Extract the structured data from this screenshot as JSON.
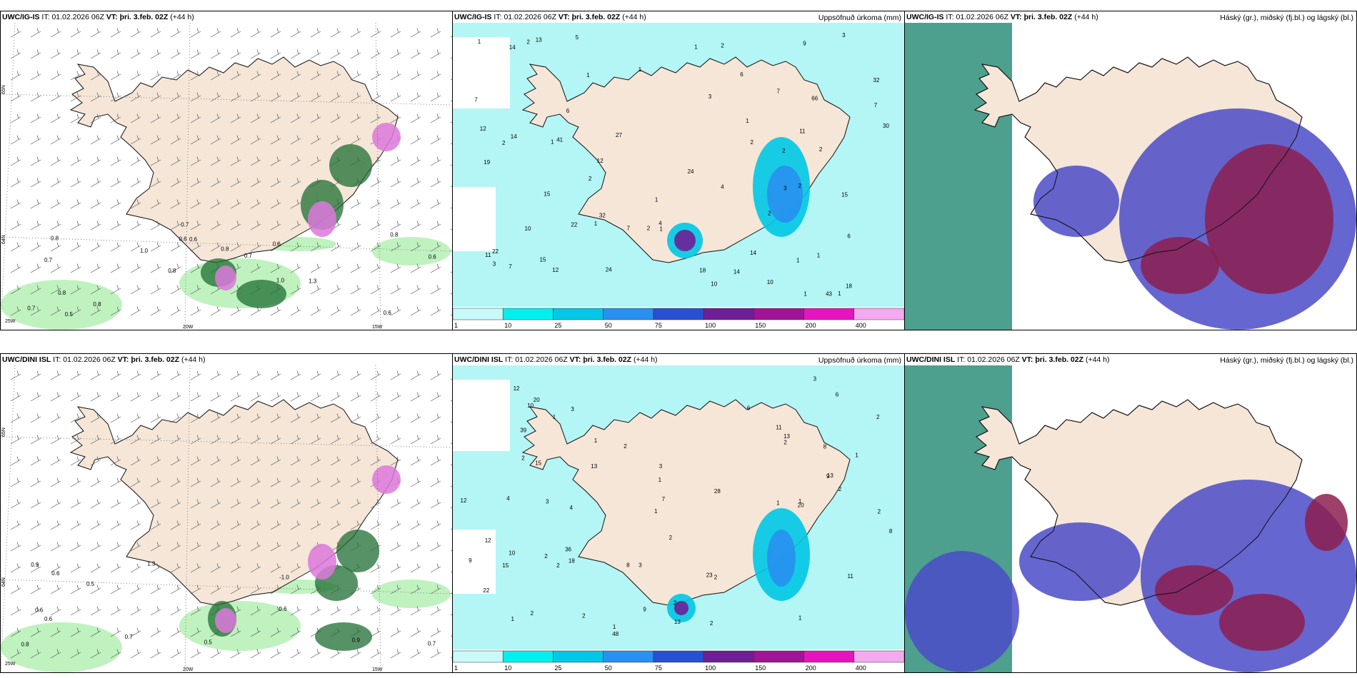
{
  "rows": [
    {
      "model": "UWC/IG-IS",
      "panels": [
        {
          "kind": "wind",
          "model": "UWC/IG-IS",
          "it_label": "IT:",
          "it": "01.02.2026 06Z",
          "vt_label": "VT:",
          "vt": "þri. 3.feb. 02Z",
          "lead": "(+44 h)",
          "right_title": ""
        },
        {
          "kind": "precip",
          "model": "UWC/IG-IS",
          "it_label": "IT:",
          "it": "01.02.2026 06Z",
          "vt_label": "VT:",
          "vt": "þri. 3.feb. 02Z",
          "lead": "(+44 h)",
          "right_title": "Uppsöfnuð úrkoma (mm)"
        },
        {
          "kind": "cloud",
          "model": "UWC/IG-IS",
          "it_label": "IT:",
          "it": "01.02.2026 06Z",
          "vt_label": "VT:",
          "vt": "þri. 3.feb. 02Z",
          "lead": "(+44 h)",
          "right_title": "Háský (gr.), miðský (fj.bl.) og lágský (bl.)"
        }
      ],
      "wind_values": [
        "0.6",
        "0.7",
        "0.8",
        "0.8",
        "0.6",
        "0.5",
        "0.6",
        "0.8",
        "0.8",
        "1.0",
        "0.7",
        "0.8",
        "0.6",
        "0.7",
        "1.3",
        "0.8",
        "0.7",
        "0.6",
        "1.0"
      ],
      "precip_values": [
        "1",
        "1",
        "2",
        "2",
        "1",
        "1",
        "2",
        "2",
        "1",
        "2",
        "2",
        "1",
        "1",
        "1",
        "12",
        "14",
        "24",
        "30",
        "32",
        "27",
        "43",
        "41",
        "14",
        "22",
        "1",
        "2",
        "18",
        "22",
        "66",
        "11",
        "32",
        "7",
        "7",
        "6",
        "7",
        "12",
        "14",
        "13",
        "15",
        "24",
        "19",
        "18",
        "15",
        "10",
        "1",
        "3",
        "4",
        "6",
        "5",
        "6",
        "10",
        "11",
        "4",
        "9",
        "7",
        "1",
        "12",
        "14",
        "10",
        "15",
        "2",
        "1",
        "7",
        "3",
        "1",
        "2",
        "3",
        "3",
        "2"
      ],
      "lat_labels": [
        "65N",
        "64N"
      ],
      "lon_labels": [
        "25W",
        "20W",
        "15W"
      ]
    },
    {
      "model": "UWC/DINI ISL",
      "panels": [
        {
          "kind": "wind",
          "model": "UWC/DINI ISL",
          "it_label": "IT:",
          "it": "01.02.2026 06Z",
          "vt_label": "VT:",
          "vt": "þri. 3.feb. 02Z",
          "lead": "(+44 h)",
          "right_title": ""
        },
        {
          "kind": "precip",
          "model": "UWC/DINI ISL",
          "it_label": "IT:",
          "it": "01.02.2026 06Z",
          "vt_label": "VT:",
          "vt": "þri. 3.feb. 02Z",
          "lead": "(+44 h)",
          "right_title": "Uppsöfnuð úrkoma (mm)"
        },
        {
          "kind": "cloud",
          "model": "UWC/DINI ISL",
          "it_label": "IT:",
          "it": "01.02.2026 06Z",
          "vt_label": "VT:",
          "vt": "þri. 3.feb. 02Z",
          "lead": "(+44 h)",
          "right_title": "Háský (gr.), miðský (fj.bl.) og lágský (bl.)"
        }
      ],
      "wind_values": [
        "0.6",
        "0.6",
        "0.6",
        "0.8",
        "-1.0",
        "0.9",
        "0.7",
        "0.7",
        "1.3",
        "0.5",
        "0.5",
        "0.9",
        "0.6"
      ],
      "precip_values": [
        "1",
        "1",
        "1",
        "2",
        "2",
        "2",
        "1",
        "2",
        "3",
        "2",
        "2",
        "1",
        "1",
        "1",
        "1",
        "2",
        "2",
        "3",
        "4",
        "28",
        "23",
        "39",
        "36",
        "20",
        "8",
        "11",
        "9",
        "15",
        "6",
        "8",
        "13",
        "13",
        "48",
        "11",
        "10",
        "13",
        "10",
        "12",
        "9",
        "7",
        "6",
        "9",
        "8",
        "4",
        "15",
        "22",
        "20",
        "12",
        "12",
        "13",
        "18",
        "2",
        "1",
        "3",
        "2",
        "3",
        "2",
        "1",
        "2",
        "2",
        "3",
        "2"
      ],
      "lat_labels": [
        "65N",
        "64N"
      ],
      "lon_labels": [
        "25W",
        "20W",
        "15W"
      ]
    }
  ],
  "colorbar": {
    "ticks": [
      "1",
      "10",
      "25",
      "50",
      "75",
      "100",
      "150",
      "200",
      "400"
    ],
    "colors": [
      "#c8fafa",
      "#00f0f0",
      "#00c8e6",
      "#2890f0",
      "#2850d2",
      "#6e1e96",
      "#a01496",
      "#e614be",
      "#f5aaf0"
    ]
  },
  "colors": {
    "land": "#f5e6d8",
    "sea": "#ffffff",
    "precip_light": "#b4f5f5",
    "precip_mid": "#00d2e6",
    "cloud_high": "#2e8e7a",
    "cloud_mid": "#4b4bc8",
    "cloud_low": "#8c1e50",
    "wind_green": "#b4f0b4",
    "wind_dark": "#1e6e32",
    "wind_pink": "#dc78dc"
  }
}
